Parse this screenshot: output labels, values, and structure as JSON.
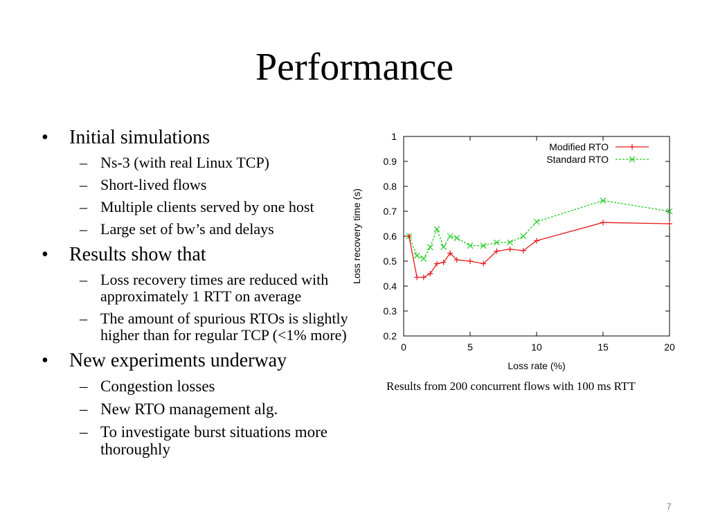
{
  "slide": {
    "title": "Performance",
    "number": "7",
    "caption": "Results from 200 concurrent flows with 100 ms RTT",
    "bullet_glyph": "•",
    "dash_glyph": "–",
    "bullets": [
      {
        "text": "Initial simulations",
        "sub": [
          "Ns-3 (with real Linux TCP)",
          "Short-lived flows",
          "Multiple clients served by one host",
          "Large set of bw’s and delays"
        ]
      },
      {
        "text": "Results show that",
        "sub": [
          "Loss recovery times are reduced with approximately 1 RTT on average",
          "The amount of spurious RTOs is slightly higher than for regular TCP (<1% more)"
        ]
      },
      {
        "text": "New experiments underway",
        "sub": [
          "Congestion losses",
          "New RTO management alg.",
          "To investigate burst situations more thoroughly"
        ]
      }
    ]
  },
  "chart_data": {
    "type": "line",
    "title": "",
    "xlabel": "Loss rate (%)",
    "ylabel": "Loss recovery time (s)",
    "xlim": [
      0,
      20
    ],
    "ylim": [
      0.2,
      1
    ],
    "xticks": [
      "0",
      "5",
      "10",
      "15",
      "20"
    ],
    "yticks": [
      "0.2",
      "0.3",
      "0.4",
      "0.5",
      "0.6",
      "0.7",
      "0.8",
      "0.9",
      "1"
    ],
    "grid": false,
    "legend_position": "top-right",
    "series": [
      {
        "name": "Modified RTO",
        "color": "#e41a1c",
        "dash": "solid",
        "marker": "plus",
        "points": [
          [
            0.4,
            0.6
          ],
          [
            1,
            0.435
          ],
          [
            1.5,
            0.435
          ],
          [
            2,
            0.45
          ],
          [
            2.5,
            0.49
          ],
          [
            3,
            0.495
          ],
          [
            3.5,
            0.532
          ],
          [
            4,
            0.505
          ],
          [
            5,
            0.5
          ],
          [
            6,
            0.49
          ],
          [
            7,
            0.54
          ],
          [
            8,
            0.548
          ],
          [
            9,
            0.542
          ],
          [
            10,
            0.582
          ],
          [
            15,
            0.655
          ],
          [
            20,
            0.65
          ]
        ]
      },
      {
        "name": "Standard RTO",
        "color": "#22cc22",
        "dash": "dashed",
        "marker": "cross",
        "points": [
          [
            0.4,
            0.6
          ],
          [
            1,
            0.522
          ],
          [
            1.5,
            0.51
          ],
          [
            2,
            0.556
          ],
          [
            2.5,
            0.628
          ],
          [
            3,
            0.557
          ],
          [
            3.5,
            0.6
          ],
          [
            4,
            0.593
          ],
          [
            5,
            0.562
          ],
          [
            6,
            0.562
          ],
          [
            7,
            0.575
          ],
          [
            8,
            0.575
          ],
          [
            9,
            0.6
          ],
          [
            10,
            0.658
          ],
          [
            15,
            0.743
          ],
          [
            20,
            0.7
          ]
        ]
      }
    ]
  }
}
